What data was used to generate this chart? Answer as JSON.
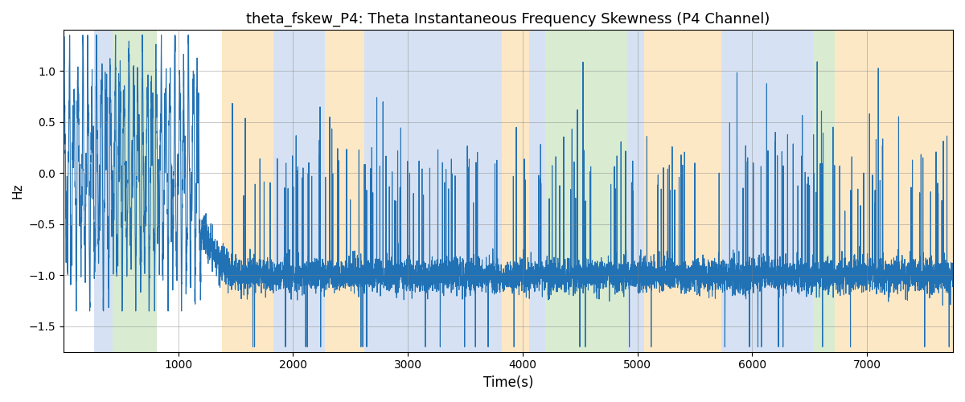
{
  "title": "theta_fskew_P4: Theta Instantaneous Frequency Skewness (P4 Channel)",
  "xlabel": "Time(s)",
  "ylabel": "Hz",
  "xlim": [
    0,
    7750
  ],
  "ylim": [
    -1.75,
    1.4
  ],
  "line_color": "#2171b5",
  "line_width": 0.8,
  "background_color": "#ffffff",
  "colored_bands": [
    {
      "xmin": 270,
      "xmax": 430,
      "color": "#aec6e8",
      "alpha": 0.5
    },
    {
      "xmin": 430,
      "xmax": 810,
      "color": "#b5d9a5",
      "alpha": 0.5
    },
    {
      "xmin": 1380,
      "xmax": 1830,
      "color": "#fdd9a0",
      "alpha": 0.6
    },
    {
      "xmin": 1830,
      "xmax": 2280,
      "color": "#aec6e8",
      "alpha": 0.5
    },
    {
      "xmin": 2280,
      "xmax": 2620,
      "color": "#fdd9a0",
      "alpha": 0.6
    },
    {
      "xmin": 2620,
      "xmax": 3820,
      "color": "#aec6e8",
      "alpha": 0.5
    },
    {
      "xmin": 3820,
      "xmax": 4060,
      "color": "#fdd9a0",
      "alpha": 0.6
    },
    {
      "xmin": 4060,
      "xmax": 4200,
      "color": "#aec6e8",
      "alpha": 0.5
    },
    {
      "xmin": 4200,
      "xmax": 4910,
      "color": "#b5d9a5",
      "alpha": 0.5
    },
    {
      "xmin": 4910,
      "xmax": 5060,
      "color": "#aec6e8",
      "alpha": 0.5
    },
    {
      "xmin": 5060,
      "xmax": 5730,
      "color": "#fdd9a0",
      "alpha": 0.6
    },
    {
      "xmin": 5730,
      "xmax": 6530,
      "color": "#aec6e8",
      "alpha": 0.5
    },
    {
      "xmin": 6530,
      "xmax": 6720,
      "color": "#b5d9a5",
      "alpha": 0.5
    },
    {
      "xmin": 6720,
      "xmax": 7750,
      "color": "#fdd9a0",
      "alpha": 0.6
    }
  ],
  "n_points": 7700,
  "seed": 42
}
